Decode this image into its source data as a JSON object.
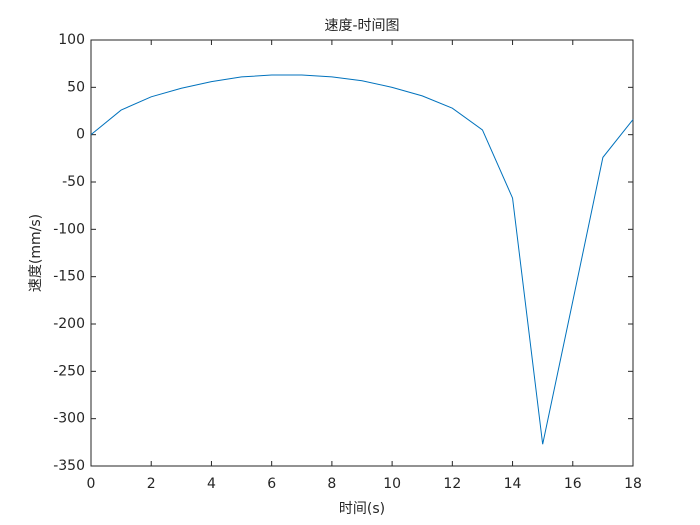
{
  "chart_data": {
    "type": "line",
    "title": "速度-时间图",
    "x_label": "时间(s)",
    "y_label": "速度(mm/s)",
    "x": [
      0,
      1,
      2,
      3,
      4,
      5,
      6,
      7,
      8,
      9,
      10,
      11,
      12,
      13,
      14,
      15,
      16,
      17,
      18
    ],
    "series": [
      {
        "color": "#0072bd",
        "values": [
          0,
          26,
          40,
          49,
          56,
          61,
          63,
          63,
          61,
          57,
          50,
          41,
          28,
          5,
          -67,
          -327,
          -176,
          -24,
          16
        ]
      }
    ],
    "xlim": [
      0,
      18
    ],
    "xticks": [
      0,
      2,
      4,
      6,
      8,
      10,
      12,
      14,
      16,
      18
    ],
    "ylim": [
      -350,
      100
    ],
    "yticks": [
      -350,
      -300,
      -250,
      -200,
      -150,
      -100,
      -50,
      0,
      50,
      100
    ]
  }
}
